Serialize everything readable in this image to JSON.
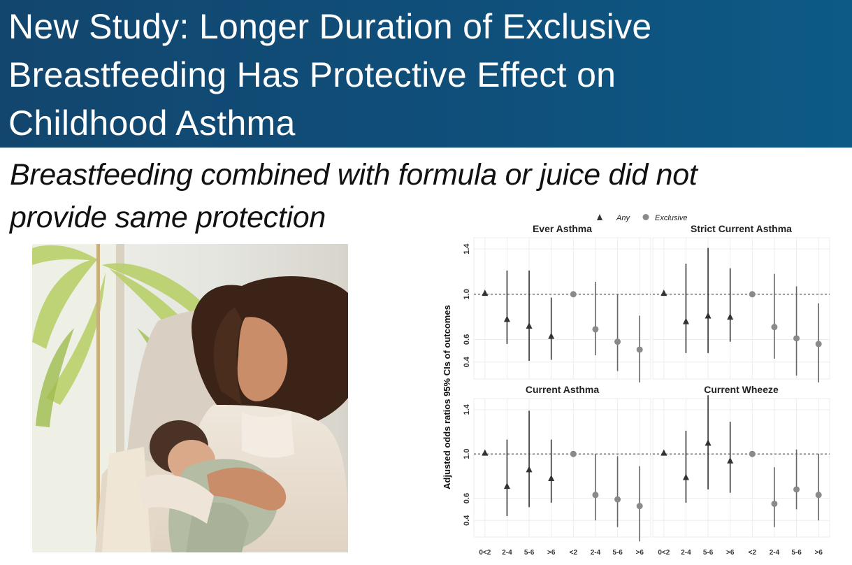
{
  "title": "New Study: Longer Duration of Exclusive Breastfeeding Has Protective Effect on Childhood Asthma",
  "title_lines": [
    "New Study: Longer Duration of Exclusive",
    "Breastfeeding Has Protective Effect on",
    "Childhood Asthma"
  ],
  "subtitle": "Breastfeeding combined with formula or juice did not provide same protection",
  "subtitle_lines": [
    "Breastfeeding combined with formula or juice did not",
    "provide same protection"
  ],
  "colors": {
    "banner": "#12466e",
    "any_marker": "#333333",
    "exclusive_marker": "#8a8a8a",
    "reference_line": "#444444"
  },
  "chart_data": {
    "type": "scatter",
    "legend": [
      {
        "name": "Any",
        "marker": "triangle"
      },
      {
        "name": "Exclusive",
        "marker": "circle"
      }
    ],
    "legend_position": "top-center",
    "ylabel": "Adjusted odds ratios 95% CIs of outcomes",
    "ylim": [
      0.25,
      1.5
    ],
    "yticks": [
      "0.4",
      "0.6",
      "1.0",
      "1.4"
    ],
    "yticks_values": [
      0.4,
      0.6,
      1.0,
      1.4
    ],
    "reference_line": 1.0,
    "grid": true,
    "x_categories": [
      "0<2",
      "2-4",
      "5-6",
      ">6",
      "<2",
      "2-4",
      "5-6",
      ">6"
    ],
    "x_groups": [
      "Any",
      "Any",
      "Any",
      "Any",
      "Exclusive",
      "Exclusive",
      "Exclusive",
      "Exclusive"
    ],
    "panels": [
      {
        "title": "Ever Asthma",
        "estimates": [
          1.01,
          0.78,
          0.72,
          0.63,
          1.0,
          0.69,
          0.58,
          0.51
        ],
        "lower": [
          1.01,
          0.56,
          0.41,
          0.42,
          1.0,
          0.46,
          0.32,
          0.22
        ],
        "upper": [
          1.01,
          1.21,
          1.21,
          0.97,
          1.0,
          1.11,
          1.0,
          0.81
        ]
      },
      {
        "title": "Strict Current Asthma",
        "estimates": [
          1.01,
          0.76,
          0.81,
          0.8,
          1.0,
          0.71,
          0.61,
          0.56
        ],
        "lower": [
          1.01,
          0.48,
          0.48,
          0.58,
          1.0,
          0.43,
          0.28,
          0.22
        ],
        "upper": [
          1.01,
          1.27,
          1.41,
          1.23,
          1.0,
          1.18,
          1.07,
          0.92
        ]
      },
      {
        "title": "Current Asthma",
        "estimates": [
          1.01,
          0.71,
          0.86,
          0.78,
          1.0,
          0.63,
          0.59,
          0.53
        ],
        "lower": [
          1.01,
          0.44,
          0.52,
          0.56,
          1.0,
          0.4,
          0.34,
          0.21
        ],
        "upper": [
          1.01,
          1.13,
          1.39,
          1.13,
          1.0,
          1.0,
          0.98,
          0.89
        ]
      },
      {
        "title": "Current Wheeze",
        "estimates": [
          1.01,
          0.79,
          1.1,
          0.94,
          1.0,
          0.55,
          0.68,
          0.63
        ],
        "lower": [
          1.01,
          0.56,
          0.68,
          0.65,
          1.0,
          0.34,
          0.5,
          0.4
        ],
        "upper": [
          1.01,
          1.21,
          1.53,
          1.29,
          1.0,
          0.88,
          1.04,
          1.0
        ]
      }
    ]
  }
}
